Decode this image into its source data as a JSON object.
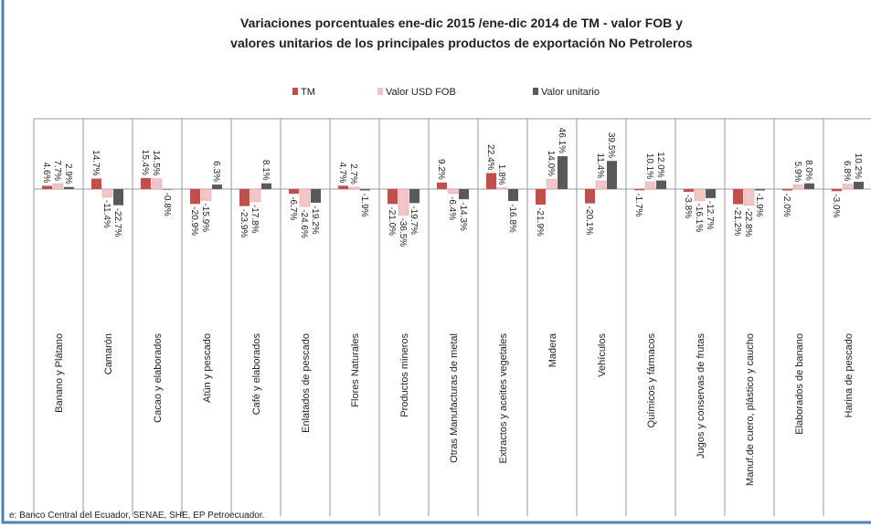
{
  "chart_data": {
    "type": "bar",
    "title": [
      "Variaciones porcentuales  ene-dic 2015 /ene-dic 2014 de TM - valor FOB  y",
      "valores unitarios de los principales productos de exportación No Petroleros"
    ],
    "categories": [
      "Banano y Plátano",
      "Camarón",
      "Cacao y elaborados",
      "Atún y pescado",
      "Café y elaborados",
      "Enlatados de pescado",
      "Flores Naturales",
      "Productos mineros",
      "Otras Manufacturas de metal",
      "Extractos y aceites vegetales",
      "Madera",
      "Vehículos",
      "Químicos y fármacos",
      "Jugos y conservas de frutas",
      "Manuf.de cuero, plástico y caucho",
      "Elaborados de banano",
      "Harina de pescado"
    ],
    "series": [
      {
        "name": "TM",
        "color": "#c0504d",
        "values": [
          4.6,
          14.7,
          15.4,
          -20.9,
          -23.9,
          -6.7,
          4.7,
          -21.0,
          9.2,
          22.4,
          -21.9,
          -20.1,
          -1.7,
          -3.8,
          -21.2,
          -2.0,
          -3.0
        ],
        "value_labels": [
          "4.6%",
          "14.7%",
          "15.4%",
          "-20.9%",
          "-23.9%",
          "-6.7%",
          "4.7%",
          "-21.0%",
          "9.2%",
          "22.4%",
          "-21.9%",
          "-20.1%",
          "-1.7%",
          "-3.8%",
          "-21.2%",
          "-2.0%",
          "-3.0%"
        ]
      },
      {
        "name": "Valor  USD FOB",
        "color": "#f2c6c6",
        "values": [
          7.7,
          -11.4,
          14.5,
          -15.9,
          -17.8,
          -24.6,
          2.7,
          -36.5,
          -6.4,
          1.8,
          14.0,
          11.4,
          10.1,
          -16.1,
          -22.8,
          5.9,
          6.8
        ],
        "value_labels": [
          "7.7%",
          "-11.4%",
          "14.5%",
          "-15.9%",
          "-17.8%",
          "-24.6%",
          "2.7%",
          "-36.5%",
          "-6.4%",
          "1.8%",
          "14.0%",
          "11.4%",
          "10.1%",
          "-16.1%",
          "-22.8%",
          "5.9%",
          "6.8%"
        ]
      },
      {
        "name": "Valor unitario",
        "color": "#595959",
        "values": [
          2.9,
          -22.7,
          -0.8,
          6.3,
          8.1,
          -19.2,
          -1.9,
          -19.7,
          -14.3,
          -16.8,
          46.1,
          39.5,
          12.0,
          -12.7,
          -1.9,
          8.0,
          10.2
        ],
        "value_labels": [
          "2.9%",
          "-22.7%",
          "-0.8%",
          "6.3%",
          "8.1%",
          "-19.2%",
          "-1.9%",
          "-19.7%",
          "-14.3%",
          "-16.8%",
          "46.1%",
          "39.5%",
          "12.0%",
          "-12.7%",
          "-1.9%",
          "8.0%",
          "10.2%"
        ]
      }
    ],
    "source": "e: Banco Central del Ecuador, SENAE, SHE, EP Petroecuador."
  }
}
